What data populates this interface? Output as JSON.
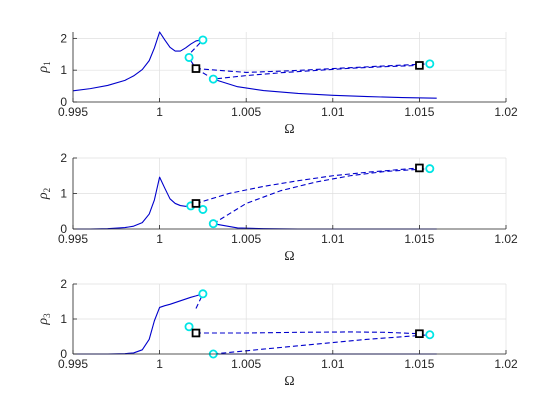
{
  "chart_data": [
    {
      "type": "line",
      "xlabel": "Ω",
      "ylabel": {
        "symbol": "ρ",
        "subscript": "1"
      },
      "xlim": [
        0.995,
        1.02
      ],
      "ylim": [
        0,
        2.2
      ],
      "xticks": [
        "0.995",
        "1",
        "1.005",
        "1.01",
        "1.015",
        "1.02"
      ],
      "yticks": [
        "0",
        "1",
        "2"
      ],
      "grid": true,
      "series": [
        {
          "style": "solid",
          "color": "#0000cc",
          "x": [
            0.995,
            0.996,
            0.997,
            0.998,
            0.9985,
            0.999,
            0.9994,
            0.9997,
            1.0,
            1.0003,
            1.0006,
            1.0009,
            1.0012,
            1.0015,
            1.0018,
            1.0021,
            1.0024
          ],
          "y": [
            0.35,
            0.42,
            0.52,
            0.68,
            0.82,
            1.02,
            1.3,
            1.7,
            2.2,
            1.95,
            1.72,
            1.6,
            1.6,
            1.7,
            1.82,
            1.92,
            1.95
          ]
        },
        {
          "style": "solid",
          "color": "#0000cc",
          "x": [
            1.0017,
            1.0021
          ],
          "y": [
            1.38,
            1.05
          ]
        },
        {
          "style": "solid",
          "color": "#0000cc",
          "x": [
            1.0031,
            1.0045,
            1.006,
            1.008,
            1.01,
            1.012,
            1.014,
            1.016
          ],
          "y": [
            0.72,
            0.48,
            0.36,
            0.27,
            0.21,
            0.17,
            0.14,
            0.12
          ]
        },
        {
          "style": "dashed",
          "color": "#0000cc",
          "x": [
            1.0021,
            1.0031,
            1.005,
            1.007,
            1.009,
            1.011,
            1.013,
            1.015
          ],
          "y": [
            1.05,
            0.72,
            0.83,
            0.92,
            0.99,
            1.06,
            1.11,
            1.15
          ]
        },
        {
          "style": "dashed",
          "color": "#0000cc",
          "x": [
            1.0021,
            1.005,
            1.0075,
            1.01,
            1.0125,
            1.0156
          ],
          "y": [
            1.05,
            0.93,
            0.98,
            1.05,
            1.12,
            1.2
          ]
        },
        {
          "style": "dashed",
          "color": "#0000cc",
          "x": [
            1.0015,
            1.0025
          ],
          "y": [
            1.38,
            1.95
          ]
        }
      ],
      "markers": [
        {
          "shape": "circle",
          "color": "#00e5e5",
          "x": 1.0025,
          "y": 1.95
        },
        {
          "shape": "circle",
          "color": "#00e5e5",
          "x": 1.0017,
          "y": 1.4
        },
        {
          "shape": "circle",
          "color": "#00e5e5",
          "x": 1.0031,
          "y": 0.72
        },
        {
          "shape": "circle",
          "color": "#00e5e5",
          "x": 1.0156,
          "y": 1.2
        },
        {
          "shape": "square",
          "color": "#000000",
          "x": 1.0021,
          "y": 1.05
        },
        {
          "shape": "square",
          "color": "#000000",
          "x": 1.015,
          "y": 1.15
        }
      ]
    },
    {
      "type": "line",
      "xlabel": "Ω",
      "ylabel": {
        "symbol": "ρ",
        "subscript": "2"
      },
      "xlim": [
        0.995,
        1.02
      ],
      "ylim": [
        0,
        2
      ],
      "xticks": [
        "0.995",
        "1",
        "1.005",
        "1.01",
        "1.015",
        "1.02"
      ],
      "yticks": [
        "0",
        "1",
        "2"
      ],
      "grid": true,
      "series": [
        {
          "style": "solid",
          "color": "#0000cc",
          "x": [
            0.995,
            0.996,
            0.997,
            0.998,
            0.9985,
            0.999,
            0.9994,
            0.9997,
            1.0,
            1.0003,
            1.0006,
            1.0009,
            1.0012,
            1.0015,
            1.0018
          ],
          "y": [
            0.0,
            0.0,
            0.01,
            0.04,
            0.08,
            0.18,
            0.42,
            0.82,
            1.46,
            1.15,
            0.85,
            0.72,
            0.66,
            0.64,
            0.65
          ]
        },
        {
          "style": "solid",
          "color": "#0000cc",
          "x": [
            1.0031,
            1.0045,
            1.006,
            1.008,
            1.01,
            1.012,
            1.014,
            1.016
          ],
          "y": [
            0.15,
            0.03,
            0.01,
            0.0,
            0.0,
            0.0,
            0.0,
            0.0
          ]
        },
        {
          "style": "dashed",
          "color": "#0000cc",
          "x": [
            1.0021,
            1.004,
            1.006,
            1.008,
            1.01,
            1.012,
            1.015
          ],
          "y": [
            0.72,
            1.0,
            1.2,
            1.36,
            1.5,
            1.6,
            1.72
          ]
        },
        {
          "style": "dashed",
          "color": "#0000cc",
          "x": [
            1.0031,
            1.005,
            1.007,
            1.009,
            1.011,
            1.013,
            1.0156
          ],
          "y": [
            0.15,
            0.72,
            1.08,
            1.32,
            1.5,
            1.62,
            1.7
          ]
        },
        {
          "style": "dashed",
          "color": "#0000cc",
          "x": [
            1.0018,
            1.0021,
            1.0025
          ],
          "y": [
            0.65,
            0.72,
            0.55
          ]
        }
      ],
      "markers": [
        {
          "shape": "circle",
          "color": "#00e5e5",
          "x": 1.0018,
          "y": 0.65
        },
        {
          "shape": "circle",
          "color": "#00e5e5",
          "x": 1.0025,
          "y": 0.55
        },
        {
          "shape": "circle",
          "color": "#00e5e5",
          "x": 1.0031,
          "y": 0.15
        },
        {
          "shape": "circle",
          "color": "#00e5e5",
          "x": 1.0156,
          "y": 1.7
        },
        {
          "shape": "square",
          "color": "#000000",
          "x": 1.0021,
          "y": 0.72
        },
        {
          "shape": "square",
          "color": "#000000",
          "x": 1.015,
          "y": 1.72
        }
      ]
    },
    {
      "type": "line",
      "xlabel": "Ω",
      "ylabel": {
        "symbol": "ρ",
        "subscript": "3"
      },
      "xlim": [
        0.995,
        1.02
      ],
      "ylim": [
        0,
        2
      ],
      "xticks": [
        "0.995",
        "1",
        "1.005",
        "1.01",
        "1.015",
        "1.02"
      ],
      "yticks": [
        "0",
        "1",
        "2"
      ],
      "grid": true,
      "series": [
        {
          "style": "solid",
          "color": "#0000cc",
          "x": [
            0.995,
            0.996,
            0.997,
            0.998,
            0.9985,
            0.999,
            0.9994,
            0.9997,
            1.0,
            1.0003,
            1.0006,
            1.0009,
            1.0012,
            1.0015,
            1.0018,
            1.0021,
            1.0025
          ],
          "y": [
            0.0,
            0.0,
            0.0,
            0.01,
            0.03,
            0.12,
            0.42,
            0.95,
            1.33,
            1.38,
            1.42,
            1.47,
            1.52,
            1.57,
            1.62,
            1.66,
            1.72
          ]
        },
        {
          "style": "solid",
          "color": "#0000cc",
          "x": [
            1.0031,
            1.006,
            1.01,
            1.016
          ],
          "y": [
            0.0,
            0.0,
            0.0,
            0.0
          ]
        },
        {
          "style": "dashed",
          "color": "#0000cc",
          "x": [
            1.0021,
            1.005,
            1.008,
            1.011,
            1.013,
            1.015
          ],
          "y": [
            0.6,
            0.6,
            0.62,
            0.63,
            0.62,
            0.58
          ]
        },
        {
          "style": "dashed",
          "color": "#0000cc",
          "x": [
            1.0031,
            1.006,
            1.009,
            1.012,
            1.0156
          ],
          "y": [
            0.0,
            0.14,
            0.28,
            0.42,
            0.55
          ]
        },
        {
          "style": "dashed",
          "color": "#0000cc",
          "x": [
            1.0017,
            1.0021
          ],
          "y": [
            0.78,
            0.6
          ]
        },
        {
          "style": "dashed",
          "color": "#0000cc",
          "x": [
            1.0021,
            1.0025
          ],
          "y": [
            1.3,
            1.72
          ]
        }
      ],
      "markers": [
        {
          "shape": "circle",
          "color": "#00e5e5",
          "x": 1.0025,
          "y": 1.72
        },
        {
          "shape": "circle",
          "color": "#00e5e5",
          "x": 1.0017,
          "y": 0.78
        },
        {
          "shape": "circle",
          "color": "#00e5e5",
          "x": 1.0031,
          "y": 0.0
        },
        {
          "shape": "circle",
          "color": "#00e5e5",
          "x": 1.0156,
          "y": 0.55
        },
        {
          "shape": "square",
          "color": "#000000",
          "x": 1.0021,
          "y": 0.6
        },
        {
          "shape": "square",
          "color": "#000000",
          "x": 1.015,
          "y": 0.58
        }
      ]
    }
  ]
}
